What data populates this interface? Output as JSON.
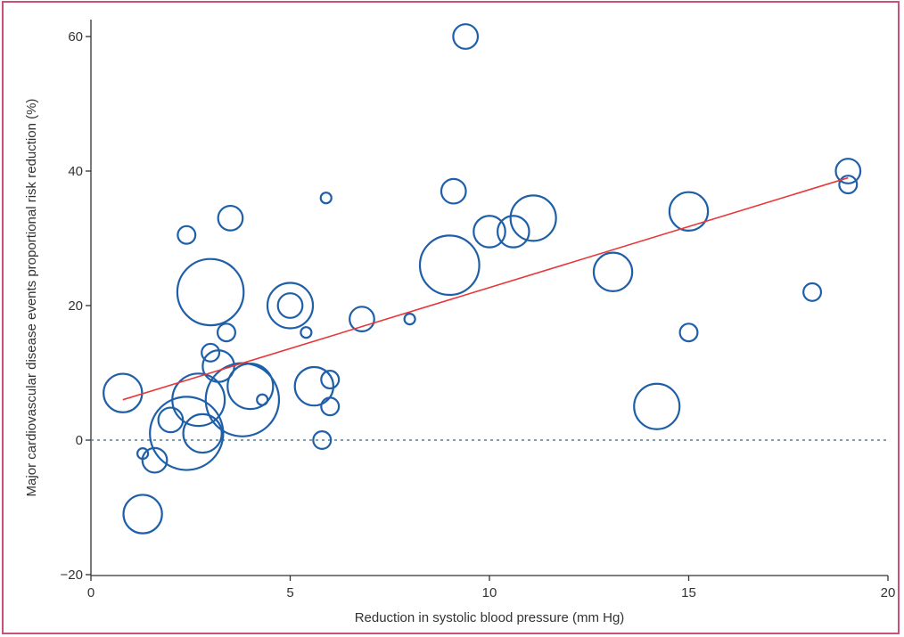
{
  "chart_data": {
    "type": "scatter",
    "title": "",
    "xlabel": "Reduction in systolic blood pressure (mm Hg)",
    "ylabel": "Major cardiovascular disease events proportional risk reduction (%)",
    "xlim": [
      0,
      20
    ],
    "ylim": [
      -20,
      65
    ],
    "xticks": [
      "0",
      "5",
      "10",
      "15",
      "20"
    ],
    "yticks": [
      "60",
      "40",
      "20",
      "0",
      "−20"
    ],
    "xtick_values": [
      0,
      5,
      10,
      15,
      20
    ],
    "ytick_values": [
      60,
      40,
      20,
      0,
      -20
    ],
    "grid": false,
    "reference_line": {
      "y": 0,
      "style": "dotted"
    },
    "points": [
      {
        "x": 9.4,
        "y": 60,
        "size": 3
      },
      {
        "x": 19.0,
        "y": 40,
        "size": 3
      },
      {
        "x": 19.0,
        "y": 38,
        "size": 2
      },
      {
        "x": 9.1,
        "y": 37,
        "size": 3
      },
      {
        "x": 5.9,
        "y": 36,
        "size": 1
      },
      {
        "x": 15.0,
        "y": 34,
        "size": 5
      },
      {
        "x": 3.5,
        "y": 33,
        "size": 3
      },
      {
        "x": 11.1,
        "y": 33,
        "size": 6
      },
      {
        "x": 10.0,
        "y": 31,
        "size": 4
      },
      {
        "x": 10.6,
        "y": 31,
        "size": 4
      },
      {
        "x": 2.4,
        "y": 30.5,
        "size": 2
      },
      {
        "x": 9.0,
        "y": 26,
        "size": 8
      },
      {
        "x": 13.1,
        "y": 25,
        "size": 5
      },
      {
        "x": 3.0,
        "y": 22,
        "size": 9
      },
      {
        "x": 18.1,
        "y": 22,
        "size": 2
      },
      {
        "x": 5.0,
        "y": 20,
        "size": 6
      },
      {
        "x": 5.0,
        "y": 20,
        "size": 3
      },
      {
        "x": 6.8,
        "y": 18,
        "size": 3
      },
      {
        "x": 8.0,
        "y": 18,
        "size": 1
      },
      {
        "x": 3.4,
        "y": 16,
        "size": 2
      },
      {
        "x": 5.4,
        "y": 16,
        "size": 1
      },
      {
        "x": 15.0,
        "y": 16,
        "size": 2
      },
      {
        "x": 3.0,
        "y": 13,
        "size": 2
      },
      {
        "x": 3.2,
        "y": 11,
        "size": 4
      },
      {
        "x": 6.0,
        "y": 9,
        "size": 2
      },
      {
        "x": 5.6,
        "y": 8,
        "size": 5
      },
      {
        "x": 4.0,
        "y": 8,
        "size": 6
      },
      {
        "x": 0.8,
        "y": 7,
        "size": 5
      },
      {
        "x": 2.7,
        "y": 6,
        "size": 7
      },
      {
        "x": 3.8,
        "y": 6,
        "size": 10
      },
      {
        "x": 4.3,
        "y": 6,
        "size": 1
      },
      {
        "x": 6.0,
        "y": 5,
        "size": 2
      },
      {
        "x": 14.2,
        "y": 5,
        "size": 6
      },
      {
        "x": 2.0,
        "y": 3,
        "size": 3
      },
      {
        "x": 2.4,
        "y": 1,
        "size": 10
      },
      {
        "x": 2.8,
        "y": 1,
        "size": 5
      },
      {
        "x": 5.8,
        "y": 0,
        "size": 2
      },
      {
        "x": 1.3,
        "y": -2,
        "size": 1
      },
      {
        "x": 1.6,
        "y": -3,
        "size": 3
      },
      {
        "x": 1.3,
        "y": -11,
        "size": 5
      }
    ],
    "trend_line": {
      "x": [
        0.8,
        19.0
      ],
      "y": [
        6,
        39
      ],
      "color": "#e8383b"
    },
    "colors": {
      "marker": "#1f5fa8",
      "trend": "#e8383b",
      "axis": "#333333",
      "frame": "#c8507a"
    }
  }
}
